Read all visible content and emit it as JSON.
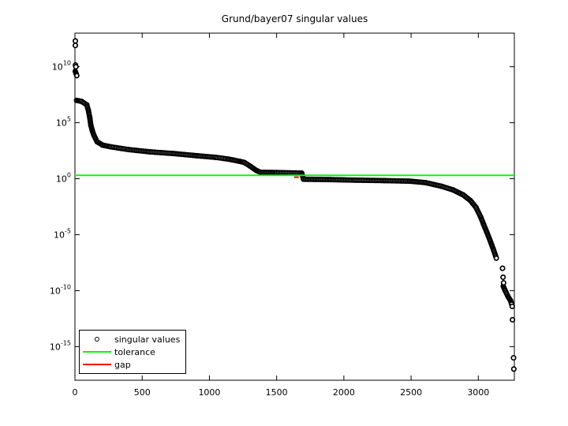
{
  "chart_data": {
    "type": "scatter",
    "title": "Grund/bayer07 singular values",
    "xlabel": "",
    "ylabel": "",
    "y_scale": "log10",
    "xlim": [
      0,
      3268
    ],
    "ylim_log10": [
      -18,
      13
    ],
    "x_ticks": [
      0,
      500,
      1000,
      1500,
      2000,
      2500,
      3000
    ],
    "y_tick_exponents": [
      10,
      5,
      0,
      -5,
      -10,
      -15
    ],
    "grid": false,
    "legend_position": "inside-bottom-left",
    "series": [
      {
        "name": "singular values",
        "marker": "o",
        "color": "#000000",
        "dense_segments": [
          [
            [
              2,
              9.6
            ],
            [
              8,
              9.4
            ],
            [
              14,
              9.2
            ]
          ],
          [
            [
              12,
              7.0
            ],
            [
              50,
              6.9
            ],
            [
              88,
              6.6
            ],
            [
              100,
              6.1
            ],
            [
              111,
              5.4
            ],
            [
              118,
              4.8
            ],
            [
              130,
              4.25
            ],
            [
              142,
              3.85
            ],
            [
              165,
              3.3
            ],
            [
              205,
              3.0
            ],
            [
              264,
              2.85
            ],
            [
              400,
              2.6
            ],
            [
              556,
              2.4
            ],
            [
              730,
              2.25
            ],
            [
              908,
              2.05
            ],
            [
              1050,
              1.9
            ],
            [
              1142,
              1.75
            ],
            [
              1225,
              1.55
            ],
            [
              1260,
              1.45
            ],
            [
              1306,
              1.1
            ],
            [
              1347,
              0.75
            ],
            [
              1380,
              0.57
            ],
            [
              1500,
              0.55
            ],
            [
              1687,
              0.5
            ],
            [
              1700,
              -0.05
            ],
            [
              1900,
              -0.08
            ],
            [
              2080,
              -0.13
            ],
            [
              2300,
              -0.17
            ],
            [
              2490,
              -0.22
            ],
            [
              2607,
              -0.35
            ],
            [
              2724,
              -0.67
            ],
            [
              2812,
              -1.0
            ],
            [
              2888,
              -1.45
            ],
            [
              2941,
              -1.95
            ],
            [
              2982,
              -2.55
            ],
            [
              3017,
              -3.4
            ],
            [
              3040,
              -4.1
            ],
            [
              3064,
              -4.8
            ],
            [
              3087,
              -5.5
            ],
            [
              3116,
              -6.45
            ],
            [
              3134,
              -7.1
            ]
          ],
          [
            [
              3185,
              -9.6
            ],
            [
              3200,
              -10.0
            ],
            [
              3220,
              -10.5
            ],
            [
              3240,
              -10.9
            ],
            [
              3248,
              -11.2
            ]
          ]
        ],
        "isolated_points": [
          [
            3,
            12.3
          ],
          [
            3,
            11.9
          ],
          [
            4,
            10.15
          ],
          [
            7,
            10.0
          ],
          [
            3180,
            -8.0
          ],
          [
            3184,
            -8.8
          ],
          [
            3188,
            -9.3
          ],
          [
            3252,
            -11.4
          ],
          [
            3254,
            -12.6
          ],
          [
            3262,
            -16.0
          ],
          [
            3264,
            -17.0
          ]
        ],
        "max_singular_value_approx": "2e12",
        "min_singular_value_approx": "1e-17"
      },
      {
        "name": "tolerance",
        "type": "hline",
        "color": "#00ff00",
        "value": 2.0,
        "value_log10": 0.3
      },
      {
        "name": "gap",
        "type": "segment",
        "color": "#ff0000",
        "x_range": [
          1630,
          1665
        ],
        "value_log10": 0.13
      }
    ]
  },
  "legend": {
    "items": [
      {
        "label": "singular values",
        "swatch": "open-circle-marker",
        "color": "#000000"
      },
      {
        "label": "tolerance",
        "swatch": "line",
        "color": "#00ff00"
      },
      {
        "label": "gap",
        "swatch": "line",
        "color": "#ff0000"
      }
    ]
  }
}
